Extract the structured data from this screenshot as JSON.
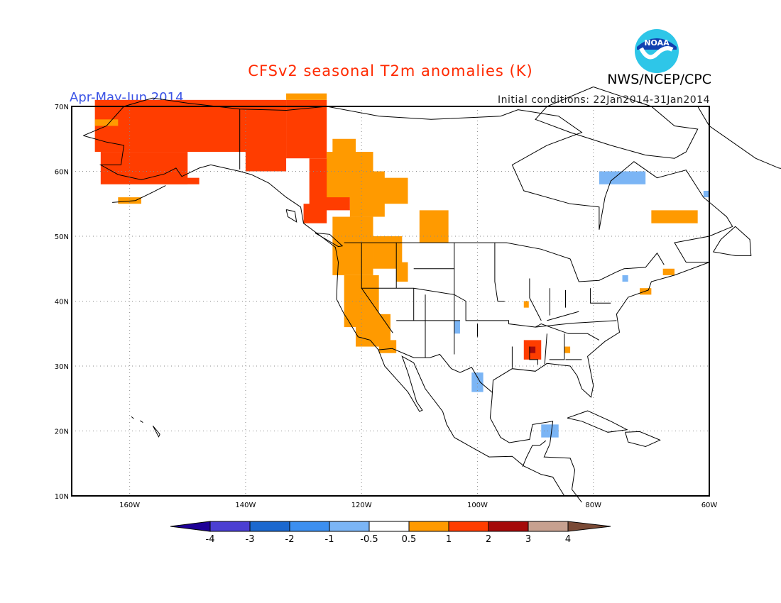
{
  "header": {
    "title": "CFSv2 seasonal T2m anomalies (K)",
    "period": "Apr-May-Jun 2014",
    "initial_conditions": "Initial conditions: 22Jan2014-31Jan2014",
    "agency": "NWS/NCEP/CPC",
    "logo_text": "NOAA"
  },
  "colors": {
    "title": "#ff2a00",
    "period": "#3a53e6",
    "frame": "#000000",
    "land_outline": "#000000",
    "grid": "#8a8a8a"
  },
  "map": {
    "lon_labels": [
      "160W",
      "140W",
      "120W",
      "100W",
      "80W",
      "60W"
    ],
    "lat_labels": [
      "70N",
      "60N",
      "50N",
      "40N",
      "30N",
      "20N",
      "10N"
    ],
    "lon_values": [
      -160,
      -140,
      -120,
      -100,
      -80,
      -60
    ],
    "lat_values": [
      70,
      60,
      50,
      40,
      30,
      20,
      10
    ],
    "lon_range": [
      -170,
      -60
    ],
    "lat_range": [
      10,
      70
    ]
  },
  "legend": {
    "labels": [
      "-4",
      "-3",
      "-2",
      "-1",
      "-0.5",
      "0.5",
      "1",
      "2",
      "3",
      "4"
    ],
    "colors": [
      "#1e0096",
      "#4b3fd2",
      "#1b68cf",
      "#3c8ff0",
      "#7bb5f5",
      "#ffffff",
      "#ff9a00",
      "#ff3d00",
      "#a50a0a",
      "#c7a190",
      "#7a4a36"
    ]
  }
}
